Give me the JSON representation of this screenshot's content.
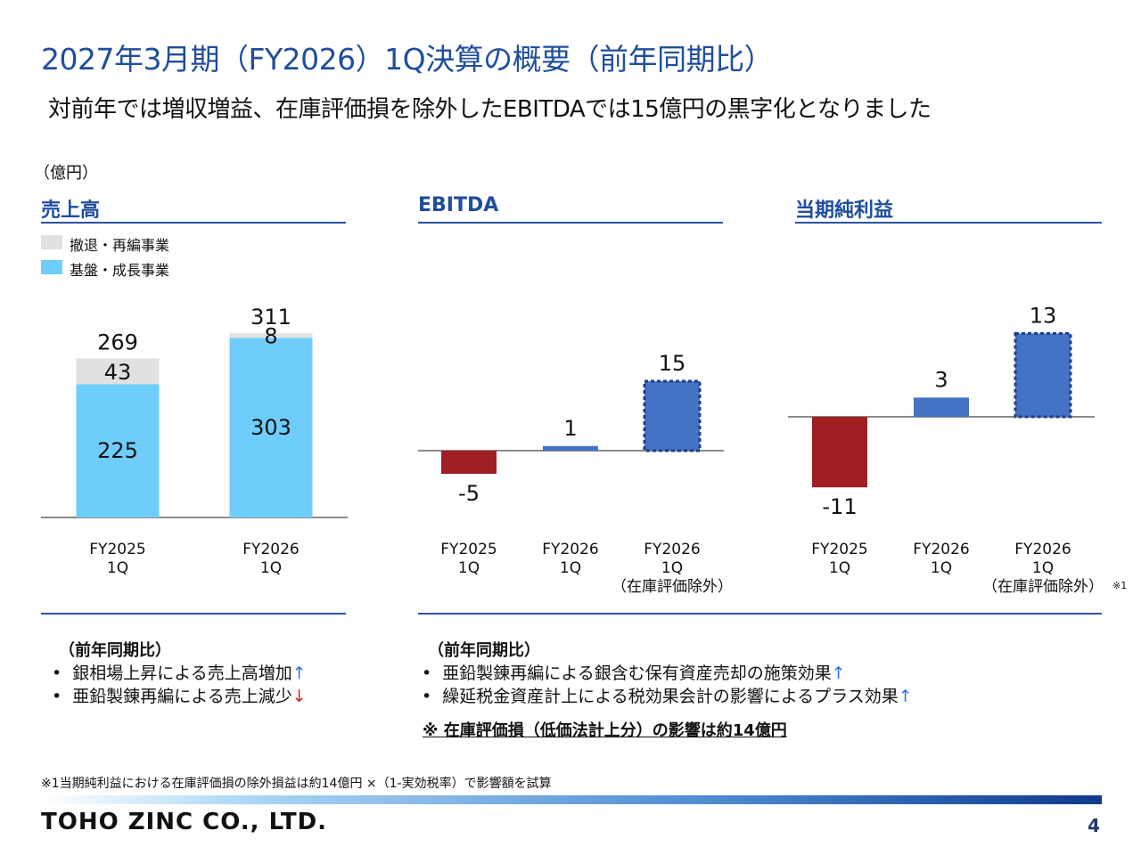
{
  "title": "2027年3月期（FY2026）1Q決算の概要（前年同期比）",
  "subtitle": "対前年では増収増益、在庫評価損を除外したEBITDAでは15億円の黒字化となりました",
  "unit_label": "（億円）",
  "sections": {
    "sales": "売上高",
    "ebitda": "EBITDA",
    "net_income": "当期純利益"
  },
  "legend": {
    "withdraw_label": "撤退・再編事業",
    "core_label": "基盤・成長事業",
    "withdraw_color": "#e1e1e1",
    "core_color": "#6fcdfb"
  },
  "colors": {
    "negative": "#a01f23",
    "positive": "#4472c4",
    "title": "#1f4e9c"
  },
  "chart_data": [
    {
      "type": "bar",
      "stacked": true,
      "title": "売上高",
      "categories": [
        [
          "FY2025",
          "1Q"
        ],
        [
          "FY2026",
          "1Q"
        ]
      ],
      "series": [
        {
          "name": "基盤・成長事業",
          "values": [
            225,
            303
          ]
        },
        {
          "name": "撤退・再編事業",
          "values": [
            43,
            8
          ]
        }
      ],
      "totals": [
        269,
        311
      ]
    },
    {
      "type": "bar",
      "title": "EBITDA",
      "categories": [
        [
          "FY2025",
          "1Q"
        ],
        [
          "FY2026",
          "1Q"
        ],
        [
          "FY2026",
          "1Q",
          "（在庫評価除外）"
        ]
      ],
      "values": [
        -5,
        1,
        15
      ],
      "dashed": [
        false,
        false,
        true
      ]
    },
    {
      "type": "bar",
      "title": "当期純利益",
      "categories": [
        [
          "FY2025",
          "1Q"
        ],
        [
          "FY2026",
          "1Q"
        ],
        [
          "FY2026",
          "1Q",
          "（在庫評価除外）"
        ]
      ],
      "values": [
        -11,
        3,
        13
      ],
      "dashed": [
        false,
        false,
        true
      ],
      "footnote_mark": "※1"
    }
  ],
  "notes_left": {
    "heading": "（前年同期比）",
    "items": [
      {
        "text": "銀相場上昇による売上高増加",
        "arrow": "↑"
      },
      {
        "text": "亜鉛製錬再編による売上減少",
        "arrow": "↓"
      }
    ]
  },
  "notes_right": {
    "heading": "（前年同期比）",
    "items": [
      {
        "text": "亜鉛製錬再編による銀含む保有資産売却の施策効果",
        "arrow": "↑"
      },
      {
        "text": "繰延税金資産計上による税効果会計の影響によるプラス効果",
        "arrow": "↑"
      }
    ],
    "emphasis": "※ 在庫評価損（低価法計上分）の影響は約14億円"
  },
  "footnote": "※1当期純利益における在庫評価損の除外損益は約14億円 ×（1-実効税率）で影響額を試算",
  "company_logo": "TOHO ZINC CO., LTD.",
  "page_number": "4"
}
